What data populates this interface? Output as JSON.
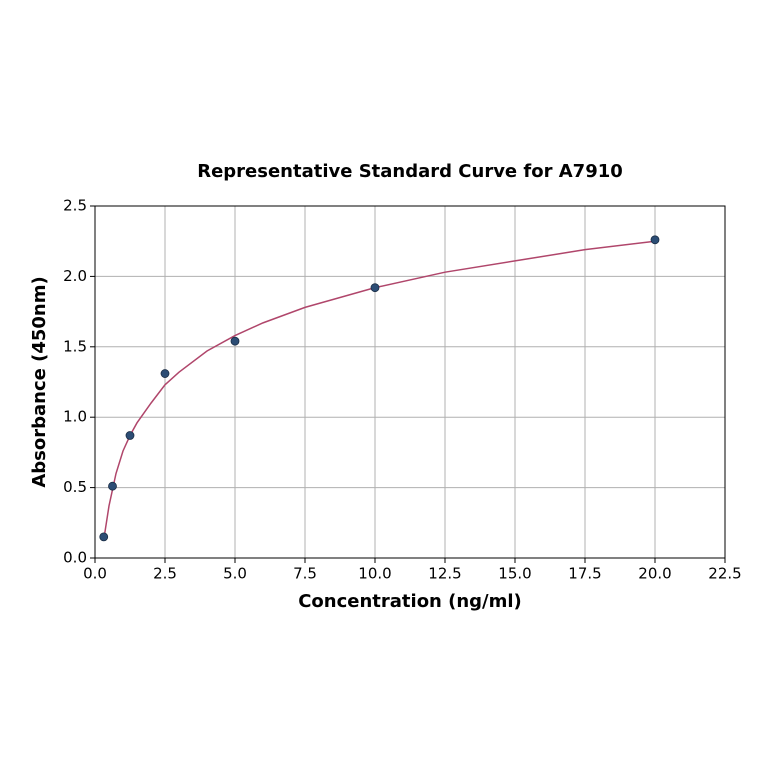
{
  "chart_data": {
    "type": "scatter",
    "title": "Representative Standard Curve for A7910",
    "x_label": "Concentration (ng/ml)",
    "y_label": "Absorbance (450nm)",
    "xlim": [
      0,
      22.5
    ],
    "ylim": [
      0,
      2.5
    ],
    "xticks": [
      {
        "value": 0,
        "label": "0.0"
      },
      2.5,
      {
        "value": 5,
        "label": "5.0"
      },
      7.5,
      {
        "value": 10,
        "label": "10.0"
      },
      12.5,
      {
        "value": 15,
        "label": "15.0"
      },
      17.5,
      {
        "value": 20,
        "label": "20.0"
      },
      22.5
    ],
    "yticks": [
      {
        "value": 0,
        "label": "0.0"
      },
      0.5,
      {
        "value": 1,
        "label": "1.0"
      },
      1.5,
      {
        "value": 2,
        "label": "2.0"
      },
      2.5
    ],
    "grid": true,
    "series": [
      {
        "type": "scatter",
        "color": "#2c4d75",
        "x": [
          0.3125,
          0.625,
          1.25,
          2.5,
          5,
          10,
          20
        ],
        "values": [
          0.15,
          0.51,
          0.87,
          1.31,
          1.54,
          1.92,
          2.26
        ]
      },
      {
        "type": "line",
        "color": "#b0466b",
        "x": [
          0.3125,
          0.5,
          0.75,
          1,
          1.25,
          1.5,
          2,
          2.5,
          3,
          4,
          5,
          6,
          7.5,
          10,
          12.5,
          15,
          17.5,
          20
        ],
        "values": [
          0.13,
          0.37,
          0.6,
          0.76,
          0.87,
          0.96,
          1.1,
          1.23,
          1.32,
          1.47,
          1.58,
          1.67,
          1.78,
          1.92,
          2.03,
          2.11,
          2.19,
          2.25
        ]
      }
    ]
  }
}
